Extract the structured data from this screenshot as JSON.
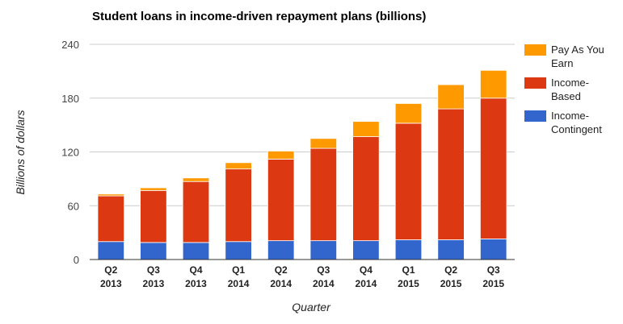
{
  "chart_data": {
    "type": "bar",
    "stacked": true,
    "title": "Student loans in income-driven repayment plans (billions)",
    "xlabel": "Quarter",
    "ylabel": "Billions of dollars",
    "ylim": [
      0,
      240
    ],
    "yticks": [
      0,
      60,
      120,
      180,
      240
    ],
    "grid": true,
    "legend_position": "right",
    "categories": [
      [
        "Q2",
        "2013"
      ],
      [
        "Q3",
        "2013"
      ],
      [
        "Q4",
        "2013"
      ],
      [
        "Q1",
        "2014"
      ],
      [
        "Q2",
        "2014"
      ],
      [
        "Q3",
        "2014"
      ],
      [
        "Q4",
        "2014"
      ],
      [
        "Q1",
        "2015"
      ],
      [
        "Q2",
        "2015"
      ],
      [
        "Q3",
        "2015"
      ]
    ],
    "series": [
      {
        "name": "Income-Contingent",
        "color": "#3366cc",
        "values": [
          20,
          19,
          19,
          20,
          21,
          21,
          21,
          22,
          22,
          23
        ]
      },
      {
        "name": "Income-Based",
        "color": "#dc3912",
        "values": [
          51,
          58,
          68,
          81,
          91,
          103,
          116,
          130,
          146,
          157
        ]
      },
      {
        "name": "Pay As You Earn",
        "color": "#ff9900",
        "values": [
          2,
          3,
          4,
          7,
          9,
          11,
          17,
          22,
          27,
          31
        ]
      }
    ],
    "legend": [
      {
        "lines": [
          "Pay As You",
          "Earn"
        ],
        "color": "#ff9900"
      },
      {
        "lines": [
          "Income-",
          "Based"
        ],
        "color": "#dc3912"
      },
      {
        "lines": [
          "Income-",
          "Contingent"
        ],
        "color": "#3366cc"
      }
    ]
  }
}
